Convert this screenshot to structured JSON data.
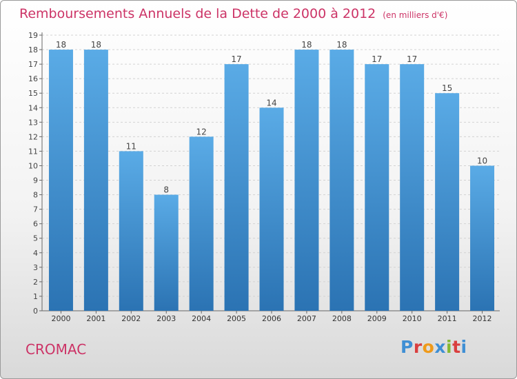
{
  "title": "Remboursements Annuels de la Dette de 2000 à 2012",
  "unit_note": "(en milliers d'€)",
  "commune": "CROMAC",
  "logo": {
    "letters": [
      "P",
      "r",
      "o",
      "x",
      "i",
      "t",
      "i"
    ],
    "colors": [
      "#3f8fd4",
      "#d93f3f",
      "#ef9a1a",
      "#3f8fd4",
      "#86b832",
      "#d93f3f",
      "#3f8fd4"
    ]
  },
  "colors": {
    "bar_light": "#5aabe6",
    "bar_dark": "#2b73b3",
    "title": "#cc3366"
  },
  "chart_data": {
    "type": "bar",
    "title": "Remboursements Annuels de la Dette de 2000 à 2012",
    "categories": [
      "2000",
      "2001",
      "2002",
      "2003",
      "2004",
      "2005",
      "2006",
      "2007",
      "2008",
      "2009",
      "2010",
      "2011",
      "2012"
    ],
    "values": [
      18,
      18,
      11,
      8,
      12,
      17,
      14,
      18,
      18,
      17,
      17,
      15,
      10
    ],
    "ylim": [
      0,
      19
    ],
    "yticks": [
      0,
      1,
      2,
      3,
      4,
      5,
      6,
      7,
      8,
      9,
      10,
      11,
      12,
      13,
      14,
      15,
      16,
      17,
      18,
      19
    ],
    "grid": true
  }
}
